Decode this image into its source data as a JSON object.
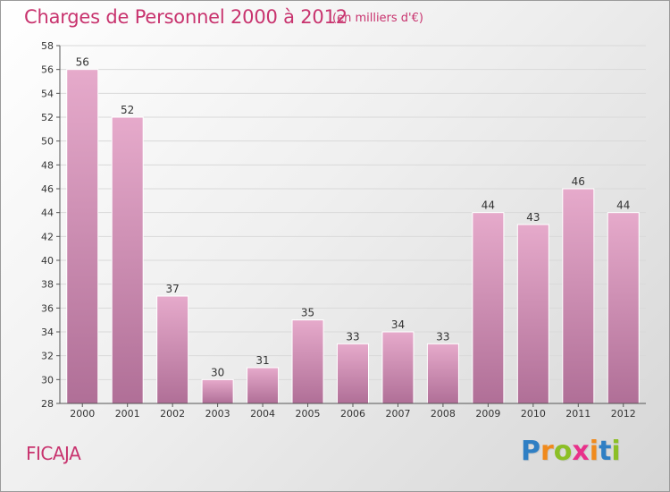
{
  "header": {
    "title": "Charges de Personnel 2000 à 2012",
    "subtitle": "(en milliers d'€)"
  },
  "footer": {
    "commune": "FICAJA",
    "logo": {
      "text": "Proxiti",
      "letters": [
        {
          "char": "P",
          "color": "#2f7fc4"
        },
        {
          "char": "r",
          "color": "#f08a1c"
        },
        {
          "char": "o",
          "color": "#8cbf26"
        },
        {
          "char": "x",
          "color": "#e8308a"
        },
        {
          "char": "i",
          "color": "#f08a1c"
        },
        {
          "char": "t",
          "color": "#2f7fc4"
        },
        {
          "char": "i",
          "color": "#8cbf26"
        }
      ]
    }
  },
  "chart_data": {
    "type": "bar",
    "title": "Charges de Personnel 2000 à 2012",
    "subtitle": "(en milliers d'€)",
    "categories": [
      "2000",
      "2001",
      "2002",
      "2003",
      "2004",
      "2005",
      "2006",
      "2007",
      "2008",
      "2009",
      "2010",
      "2011",
      "2012"
    ],
    "values": [
      56,
      52,
      37,
      30,
      31,
      35,
      33,
      34,
      33,
      44,
      43,
      46,
      44
    ],
    "xlabel": "",
    "ylabel": "",
    "ylim": [
      28,
      58
    ],
    "yticks": [
      28,
      30,
      32,
      34,
      36,
      38,
      40,
      42,
      44,
      46,
      48,
      50,
      52,
      54,
      56,
      58
    ],
    "grid": true,
    "data_labels": true,
    "colors": {
      "bar_top": "#e6aacb",
      "bar_bottom": "#b06f97",
      "grid": "#d9d9d9",
      "axis": "#555555",
      "text": "#333333"
    }
  }
}
